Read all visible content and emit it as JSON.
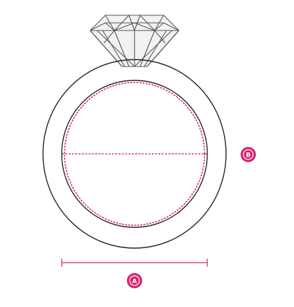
{
  "diagram": {
    "labels": {
      "width_marker": "A",
      "circumference_marker": "B"
    },
    "colors": {
      "outline": "#222222",
      "accent": "#d6246e",
      "gem_fill": "#f2f2f2",
      "gem_lines": "#555555",
      "background": "#ffffff"
    },
    "icons": [
      "diamond-icon",
      "ring-band-icon"
    ]
  }
}
